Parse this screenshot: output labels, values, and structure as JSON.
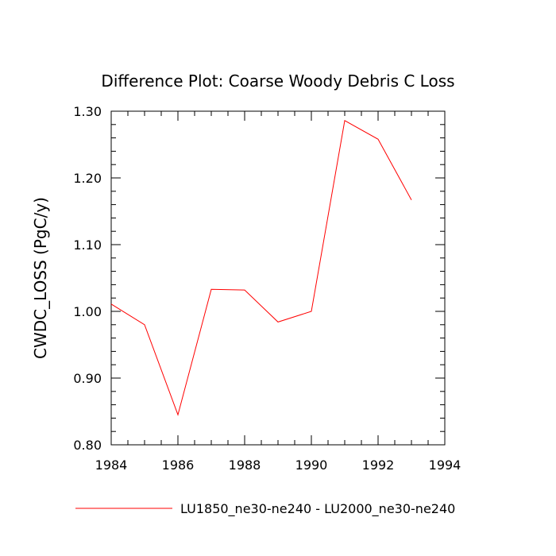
{
  "chart_data": {
    "type": "line",
    "title": "Difference Plot: Coarse Woody Debris C Loss",
    "xlabel": "",
    "ylabel": "CWDC_LOSS  (PgC/y)",
    "xlim": [
      1984,
      1994
    ],
    "ylim": [
      0.8,
      1.3
    ],
    "x_ticks": [
      1984,
      1986,
      1988,
      1990,
      1992,
      1994
    ],
    "x_tick_labels": [
      "1984",
      "1986",
      "1988",
      "1990",
      "1992",
      "1994"
    ],
    "y_ticks": [
      0.8,
      0.9,
      1.0,
      1.1,
      1.2,
      1.3
    ],
    "y_tick_labels": [
      "0.80",
      "0.90",
      "1.00",
      "1.10",
      "1.20",
      "1.30"
    ],
    "grid": false,
    "legend_position": "bottom",
    "series": [
      {
        "name": "LU1850_ne30-ne240 - LU2000_ne30-ne240",
        "color": "#ff0000",
        "x": [
          1984,
          1985,
          1986,
          1987,
          1988,
          1989,
          1990,
          1991,
          1992,
          1993
        ],
        "y": [
          1.011,
          0.98,
          0.845,
          1.033,
          1.032,
          0.984,
          1.0,
          1.286,
          1.258,
          1.167
        ]
      }
    ]
  }
}
